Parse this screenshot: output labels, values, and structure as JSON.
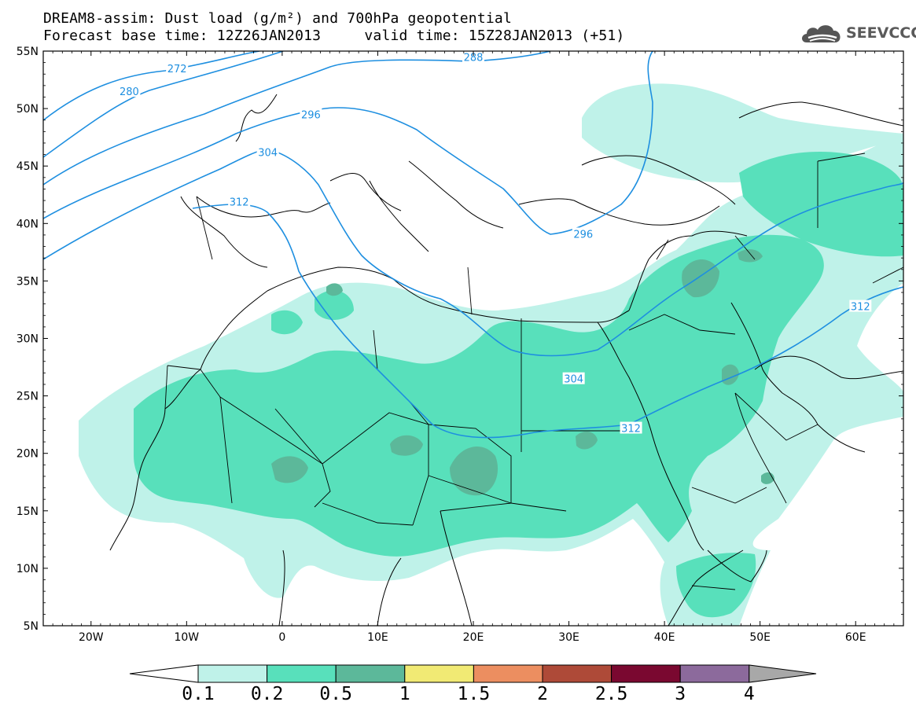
{
  "header": {
    "title_line1": "DREAM8-assim: Dust load (g/m²) and 700hPa geopotential",
    "title_line2": "Forecast base time: 12Z26JAN2013     valid time: 15Z28JAN2013 (+51)",
    "logo_text": "SEEVCCC",
    "logo_icon": "cloud-icon"
  },
  "map": {
    "lat_labels": [
      "55N",
      "50N",
      "45N",
      "40N",
      "35N",
      "30N",
      "25N",
      "20N",
      "15N",
      "10N",
      "5N"
    ],
    "lon_labels": [
      "20W",
      "10W",
      "0",
      "10E",
      "20E",
      "30E",
      "40E",
      "50E",
      "60E"
    ],
    "lon_range": [
      -25,
      65
    ],
    "lat_range": [
      5,
      55
    ],
    "contour_color": "#1e8fe0",
    "contour_labels": [
      {
        "text": "272",
        "lon": -11,
        "lat": 53.5
      },
      {
        "text": "280",
        "lon": -16,
        "lat": 51.5
      },
      {
        "text": "288",
        "lon": 20,
        "lat": 54.5
      },
      {
        "text": "296",
        "lon": 3,
        "lat": 49.5
      },
      {
        "text": "296",
        "lon": 31.5,
        "lat": 39.1
      },
      {
        "text": "304",
        "lon": -1.5,
        "lat": 46.2
      },
      {
        "text": "304",
        "lon": 30.5,
        "lat": 26.5
      },
      {
        "text": "312",
        "lon": -4.5,
        "lat": 41.9
      },
      {
        "text": "312",
        "lon": 36.5,
        "lat": 22.2
      },
      {
        "text": "312",
        "lon": 60.5,
        "lat": 32.8
      }
    ]
  },
  "colorbar": {
    "labels": [
      "0.1",
      "0.2",
      "0.5",
      "1",
      "1.5",
      "2",
      "2.5",
      "3",
      "4"
    ],
    "colors": [
      "#bff2e9",
      "#58e0bb",
      "#5cb89a",
      "#f1ea74",
      "#ec8e60",
      "#ae4a38",
      "#7a0830",
      "#8c6a9c"
    ],
    "over_color": "#a8a8a8",
    "under_color": "#ffffff"
  }
}
